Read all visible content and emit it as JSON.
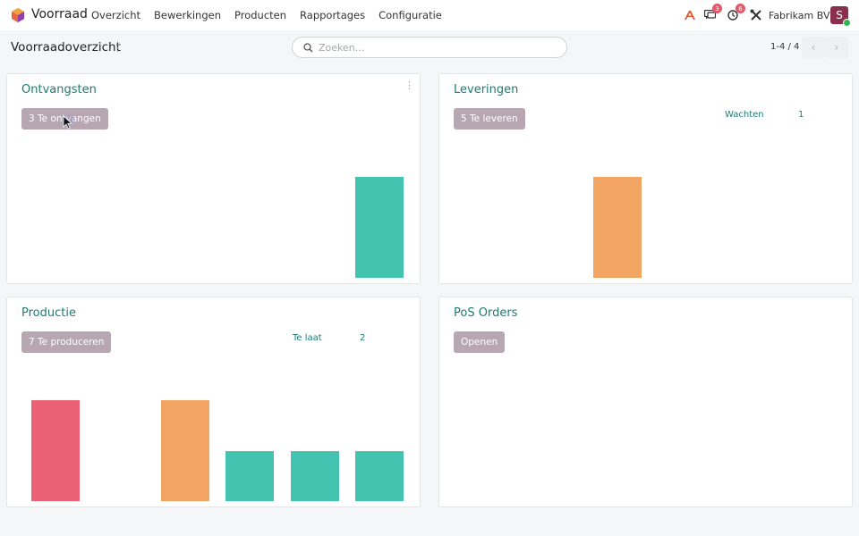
{
  "navbar": {
    "app_name": "Voorraad",
    "menu": [
      "Overzicht",
      "Bewerkingen",
      "Producten",
      "Rapportages",
      "Configuratie"
    ],
    "icons": [
      "app-logo-icon",
      "font-icon",
      "chat-icon",
      "clock-icon",
      "tools-icon"
    ],
    "chat_badge": "3",
    "activity_badge": "6",
    "company": "Fabrikam BV",
    "avatar_letter": "S"
  },
  "control_panel": {
    "title": "Voorraadoverzicht",
    "search_placeholder": "Zoeken...",
    "pager": "1-4 / 4"
  },
  "colors": {
    "teal": "#44c4b0",
    "orange": "#f2a462",
    "red": "#ea6175",
    "button": "#b6a7b3",
    "title": "#1f7a74"
  },
  "cards": [
    {
      "title": "Ontvangsten",
      "button": "3 Te ontvangen",
      "stat_label": "",
      "stat_value": "",
      "bars": [
        0,
        0,
        0,
        0,
        0,
        1
      ],
      "bar_colors": [
        "teal",
        "teal",
        "teal",
        "teal",
        "teal",
        "teal"
      ]
    },
    {
      "title": "Leveringen",
      "button": "5 Te leveren",
      "stat_label": "Wachten",
      "stat_value": "1",
      "bars": [
        0,
        0,
        1,
        0,
        0,
        0
      ],
      "bar_colors": [
        "teal",
        "teal",
        "orange",
        "teal",
        "teal",
        "teal"
      ]
    },
    {
      "title": "Productie",
      "button": "7 Te produceren",
      "stat_label": "Te laat",
      "stat_value": "2",
      "bars": [
        2,
        0,
        2,
        1,
        1,
        1
      ],
      "bar_colors": [
        "red",
        "teal",
        "orange",
        "teal",
        "teal",
        "teal"
      ]
    },
    {
      "title": "PoS Orders",
      "button": "Openen",
      "stat_label": "",
      "stat_value": "",
      "bars": [],
      "bar_colors": []
    }
  ]
}
